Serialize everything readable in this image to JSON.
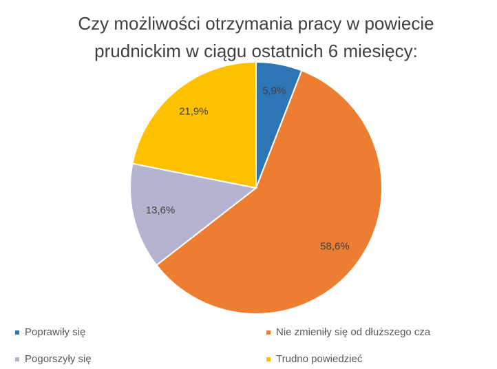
{
  "chart_data": {
    "type": "pie",
    "title": [
      "Czy możliwości otrzymania pracy w powiecie",
      "prudnickim w ciągu ostatnich 6 miesięcy:"
    ],
    "categories": [
      "Poprawiły się",
      "Nie zmieniły się od dłuższego cza",
      "Pogorszyły się",
      "Trudno powiedzieć"
    ],
    "values": [
      5.9,
      58.6,
      13.6,
      21.9
    ],
    "value_labels": [
      "5,9%",
      "58,6%",
      "13,6%",
      "21,9%"
    ],
    "colors": [
      "#2e75b6",
      "#ed7d31",
      "#b4b4d0",
      "#ffc000"
    ],
    "legend": "bottom"
  }
}
